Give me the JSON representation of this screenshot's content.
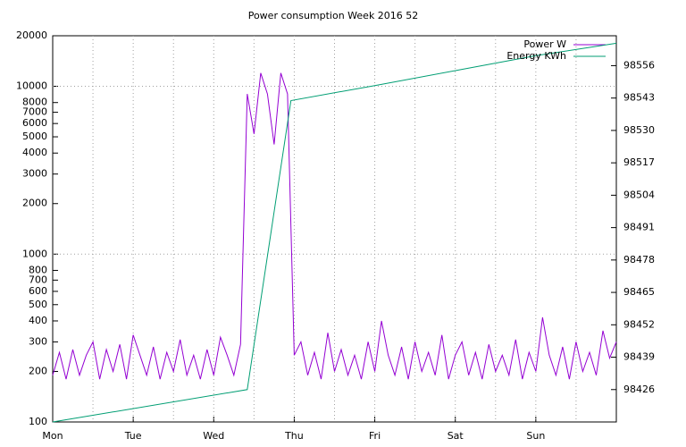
{
  "chart_data": {
    "type": "line",
    "title": "Power consumption Week 2016 52",
    "xlim": [
      0,
      168
    ],
    "xticks": [
      {
        "value": 0,
        "label": "Mon"
      },
      {
        "value": 24,
        "label": "Tue"
      },
      {
        "value": 48,
        "label": "Wed"
      },
      {
        "value": 72,
        "label": "Thu"
      },
      {
        "value": 96,
        "label": "Fri"
      },
      {
        "value": 120,
        "label": "Sat"
      },
      {
        "value": 144,
        "label": "Sun"
      }
    ],
    "ylim": [
      100,
      20000
    ],
    "yscale": "log",
    "yticks": [
      100,
      200,
      300,
      400,
      500,
      600,
      700,
      800,
      1000,
      2000,
      3000,
      4000,
      5000,
      6000,
      7000,
      8000,
      10000,
      20000
    ],
    "y2lim": [
      98413,
      98568
    ],
    "y2ticks": [
      98426,
      98439,
      98452,
      98465,
      98478,
      98491,
      98504,
      98517,
      98530,
      98543,
      98556
    ],
    "grid": true,
    "legend": "top-right",
    "series": [
      {
        "name": "Power W",
        "color": "#9400d3",
        "x": [
          0,
          2,
          4,
          6,
          8,
          10,
          12,
          14,
          16,
          18,
          20,
          22,
          24,
          26,
          28,
          30,
          32,
          34,
          36,
          38,
          40,
          42,
          44,
          46,
          48,
          50,
          52,
          54,
          56,
          58,
          60,
          62,
          64,
          66,
          68,
          70,
          72,
          74,
          76,
          78,
          80,
          82,
          84,
          86,
          88,
          90,
          92,
          94,
          96,
          98,
          100,
          102,
          104,
          106,
          108,
          110,
          112,
          114,
          116,
          118,
          120,
          122,
          124,
          126,
          128,
          130,
          132,
          134,
          136,
          138,
          140,
          142,
          144,
          146,
          148,
          150,
          152,
          154,
          156,
          158,
          160,
          162,
          164,
          166,
          168
        ],
        "values": [
          190,
          260,
          180,
          270,
          190,
          250,
          300,
          180,
          270,
          200,
          290,
          180,
          330,
          250,
          190,
          280,
          180,
          260,
          200,
          310,
          190,
          250,
          180,
          270,
          190,
          320,
          250,
          190,
          290,
          9000,
          5200,
          12000,
          9000,
          4500,
          12000,
          9000,
          250,
          300,
          190,
          260,
          180,
          340,
          200,
          270,
          190,
          250,
          180,
          300,
          200,
          400,
          250,
          190,
          280,
          180,
          300,
          200,
          260,
          190,
          330,
          180,
          250,
          300,
          190,
          260,
          180,
          290,
          200,
          250,
          190,
          310,
          180,
          260,
          200,
          420,
          250,
          190,
          280,
          180,
          300,
          200,
          260,
          190,
          350,
          240,
          300
        ]
      },
      {
        "name": "Energy KWh",
        "color": "#009e73",
        "axis": "y2",
        "x": [
          0,
          58,
          71,
          96,
          120,
          144,
          168
        ],
        "values": [
          98413,
          98426,
          98542,
          98548,
          98554,
          98560,
          98565
        ]
      }
    ]
  }
}
